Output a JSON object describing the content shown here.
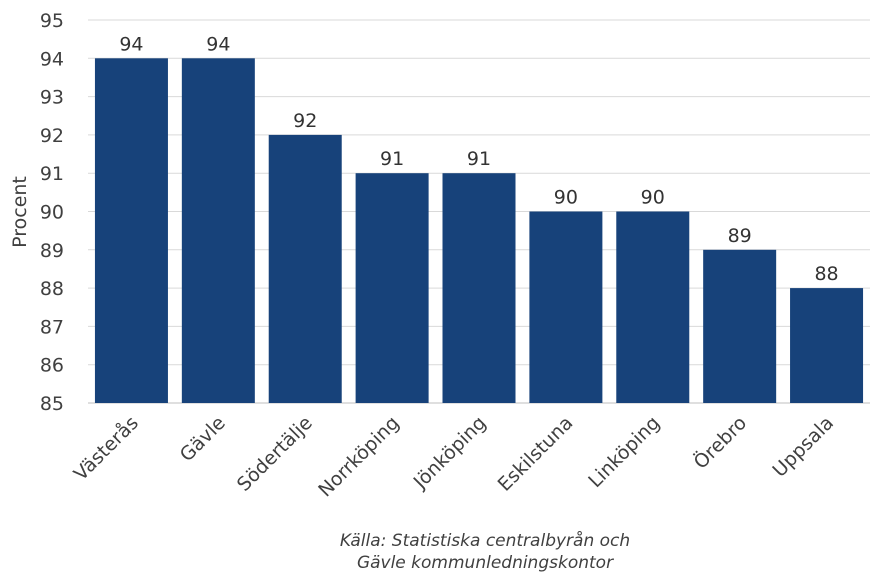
{
  "chart_data": {
    "type": "bar",
    "categories": [
      "Västerås",
      "Gävle",
      "Södertälje",
      "Norrköping",
      "Jönköping",
      "Eskilstuna",
      "Linköping",
      "Örebro",
      "Uppsala"
    ],
    "values": [
      94,
      94,
      92,
      91,
      91,
      90,
      90,
      89,
      88
    ],
    "data_labels": [
      "94",
      "94",
      "92",
      "91",
      "91",
      "90",
      "90",
      "89",
      "88"
    ],
    "ylabel": "Procent",
    "ylim": [
      85,
      95
    ],
    "yticks": [
      85,
      86,
      87,
      88,
      89,
      90,
      91,
      92,
      93,
      94,
      95
    ],
    "grid": true,
    "bar_color": "#17427a",
    "grid_color": "#d9d9d9"
  },
  "source": {
    "line1": "Källa: Statistiska centralbyrån och",
    "line2": "Gävle kommunledningskontor"
  }
}
